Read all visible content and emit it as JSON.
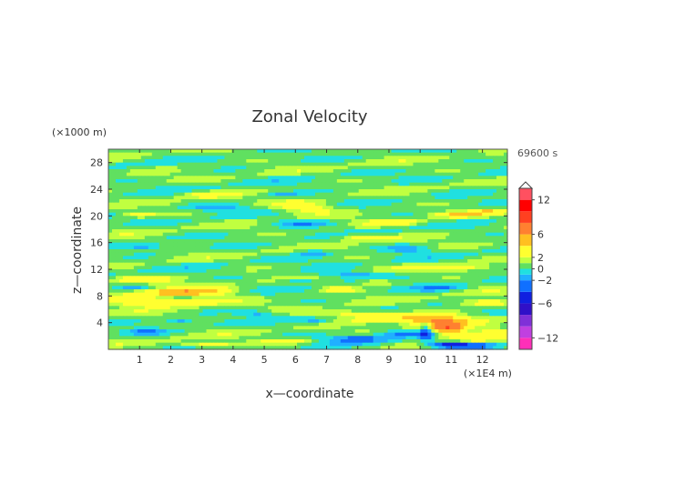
{
  "chart_data": {
    "type": "heatmap",
    "title": "Zonal Velocity",
    "xlabel": "x—coordinate",
    "ylabel": "z—coordinate",
    "x_unit": "(×1E4 m)",
    "y_unit": "(×1000 m)",
    "time_label": "69600 s",
    "xlim": [
      0,
      12.8
    ],
    "ylim": [
      0,
      30
    ],
    "x_ticks": [
      "1",
      "2",
      "3",
      "4",
      "5",
      "6",
      "7",
      "8",
      "9",
      "10",
      "11",
      "12"
    ],
    "y_ticks": [
      "4",
      "8",
      "12",
      "16",
      "20",
      "24",
      "28"
    ],
    "colorbar": {
      "levels": [
        -14,
        -12,
        -10,
        -8,
        -6,
        -4,
        -2,
        -1,
        0,
        1,
        2,
        4,
        6,
        8,
        10,
        12,
        14
      ],
      "colors": [
        "#ff2fb8",
        "#c040e0",
        "#8030d8",
        "#3010c8",
        "#1020e0",
        "#1070ff",
        "#20b0ff",
        "#20e0e0",
        "#60e060",
        "#c0ff40",
        "#ffff30",
        "#ffc020",
        "#ff8030",
        "#ff4020",
        "#ff0000",
        "#ff5060",
        "#ff9898"
      ],
      "tick_labels": [
        "12",
        "6",
        "2",
        "0",
        "−2",
        "−6",
        "−12"
      ],
      "tick_values": [
        12,
        6,
        2,
        0,
        -2,
        -6,
        -12
      ]
    },
    "background_value": 0.5,
    "features": [
      {
        "x": 1.0,
        "z": 10.5,
        "dx": 0.8,
        "dz": 0.6,
        "v": 3
      },
      {
        "x": 2.0,
        "z": 8.5,
        "dx": 1.2,
        "dz": 0.6,
        "v": 3
      },
      {
        "x": 3.0,
        "z": 8.6,
        "dx": 1.3,
        "dz": 0.7,
        "v": 3
      },
      {
        "x": 0.8,
        "z": 7.6,
        "dx": 0.9,
        "dz": 0.7,
        "v": 3
      },
      {
        "x": 1.5,
        "z": 6.8,
        "dx": 1.2,
        "dz": 0.5,
        "v": 3
      },
      {
        "x": 2.8,
        "z": 7.2,
        "dx": 1.0,
        "dz": 0.4,
        "v": 3
      },
      {
        "x": 6.3,
        "z": 21.2,
        "dx": 1.0,
        "dz": 0.8,
        "v": 3
      },
      {
        "x": 3.2,
        "z": 23.2,
        "dx": 0.8,
        "dz": 0.5,
        "v": 3
      },
      {
        "x": 1.0,
        "z": 20.2,
        "dx": 0.6,
        "dz": 0.4,
        "v": 3
      },
      {
        "x": 9.2,
        "z": 19.0,
        "dx": 0.8,
        "dz": 0.5,
        "v": 3
      },
      {
        "x": 11.2,
        "z": 20.2,
        "dx": 0.7,
        "dz": 0.4,
        "v": 3
      },
      {
        "x": 12.2,
        "z": 20.6,
        "dx": 0.5,
        "dz": 0.4,
        "v": 3
      },
      {
        "x": 8.2,
        "z": 16.8,
        "dx": 0.9,
        "dz": 0.5,
        "v": 3
      },
      {
        "x": 11.0,
        "z": 12.2,
        "dx": 1.2,
        "dz": 0.5,
        "v": 3
      },
      {
        "x": 12.0,
        "z": 7.0,
        "dx": 1.0,
        "dz": 0.6,
        "v": 3
      },
      {
        "x": 7.8,
        "z": 5.4,
        "dx": 1.3,
        "dz": 0.5,
        "v": 3
      },
      {
        "x": 9.2,
        "z": 4.6,
        "dx": 1.4,
        "dz": 0.6,
        "v": 3
      },
      {
        "x": 10.6,
        "z": 4.2,
        "dx": 0.9,
        "dz": 1.0,
        "v": 5
      },
      {
        "x": 10.9,
        "z": 3.0,
        "dx": 0.6,
        "dz": 0.8,
        "v": 6
      },
      {
        "x": 11.6,
        "z": 1.6,
        "dx": 1.0,
        "dz": 0.8,
        "v": 3
      },
      {
        "x": 3.2,
        "z": 0.8,
        "dx": 1.0,
        "dz": 0.4,
        "v": 3
      },
      {
        "x": 5.6,
        "z": 1.2,
        "dx": 0.8,
        "dz": 0.4,
        "v": 3
      },
      {
        "x": 7.4,
        "z": 9.0,
        "dx": 0.5,
        "dz": 0.4,
        "v": 3
      },
      {
        "x": 8.6,
        "z": 10.0,
        "dx": 0.6,
        "dz": 0.4,
        "v": 3
      },
      {
        "x": 12.4,
        "z": 2.6,
        "dx": 0.6,
        "dz": 0.6,
        "v": 3
      },
      {
        "x": 6.2,
        "z": 18.9,
        "dx": 1.0,
        "dz": 0.5,
        "v": -2.3
      },
      {
        "x": 3.4,
        "z": 21.2,
        "dx": 1.0,
        "dz": 0.5,
        "v": -2.3
      },
      {
        "x": 5.6,
        "z": 23.2,
        "dx": 0.6,
        "dz": 0.4,
        "v": -2.3
      },
      {
        "x": 1.2,
        "z": 15.4,
        "dx": 0.6,
        "dz": 0.4,
        "v": -2.3
      },
      {
        "x": 6.6,
        "z": 14.4,
        "dx": 0.5,
        "dz": 0.5,
        "v": -2.3
      },
      {
        "x": 9.6,
        "z": 15.0,
        "dx": 0.7,
        "dz": 0.5,
        "v": -2.3
      },
      {
        "x": 7.8,
        "z": 11.2,
        "dx": 1.3,
        "dz": 0.5,
        "v": -2.3
      },
      {
        "x": 6.1,
        "z": 10.3,
        "dx": 0.6,
        "dz": 0.4,
        "v": -2.3
      },
      {
        "x": 0.8,
        "z": 9.4,
        "dx": 0.5,
        "dz": 0.5,
        "v": -2.3
      },
      {
        "x": 10.6,
        "z": 9.2,
        "dx": 0.8,
        "dz": 0.5,
        "v": -2.3
      },
      {
        "x": 4.8,
        "z": 5.4,
        "dx": 0.6,
        "dz": 0.4,
        "v": -2.3
      },
      {
        "x": 6.7,
        "z": 4.2,
        "dx": 0.5,
        "dz": 0.4,
        "v": -2.3
      },
      {
        "x": 2.3,
        "z": 4.2,
        "dx": 0.5,
        "dz": 0.4,
        "v": -2.3
      },
      {
        "x": 1.2,
        "z": 2.6,
        "dx": 0.6,
        "dz": 0.4,
        "v": -2.3
      },
      {
        "x": 8.0,
        "z": 1.6,
        "dx": 1.0,
        "dz": 0.6,
        "v": -3
      },
      {
        "x": 9.4,
        "z": 2.4,
        "dx": 0.8,
        "dz": 0.5,
        "v": -3
      },
      {
        "x": 10.2,
        "z": 2.8,
        "dx": 0.2,
        "dz": 1.4,
        "v": -5
      },
      {
        "x": 11.0,
        "z": 0.7,
        "dx": 0.7,
        "dz": 0.5,
        "v": -7
      },
      {
        "x": 12.0,
        "z": 0.5,
        "dx": 0.6,
        "dz": 0.4,
        "v": -3
      }
    ]
  }
}
